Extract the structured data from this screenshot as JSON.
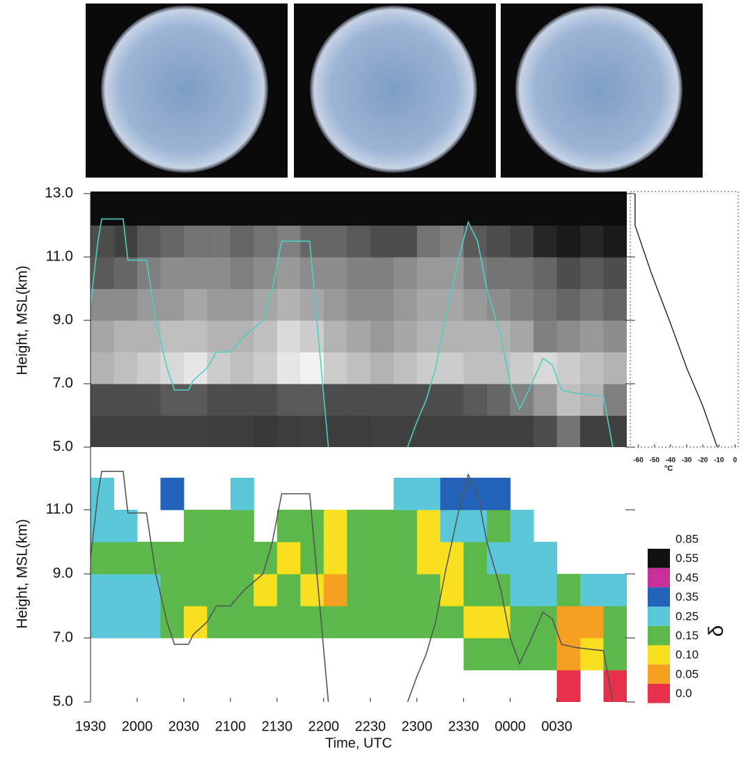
{
  "chart_data": [
    {
      "type": "heatmap",
      "ylabel": "Height, MSL(km)",
      "colormap": "gray",
      "xlim": [
        19.5,
        25.25
      ],
      "ylim": [
        5,
        13
      ],
      "yticks": [
        {
          "value": 5,
          "label": "5.0"
        },
        {
          "value": 7,
          "label": "7.0"
        },
        {
          "value": 9,
          "label": "9.0"
        },
        {
          "value": 11,
          "label": "11.0"
        },
        {
          "value": 13,
          "label": "13.0"
        }
      ],
      "xbins": [
        19.5,
        19.75,
        20,
        20.25,
        20.5,
        20.75,
        21,
        21.25,
        21.5,
        21.75,
        22,
        22.25,
        22.5,
        22.75,
        23,
        23.25,
        23.5,
        23.75,
        24,
        24.25,
        24.5,
        24.75,
        25,
        25.25
      ],
      "ybins": [
        5,
        6,
        7,
        8,
        9,
        10,
        11,
        12,
        13
      ],
      "values": [
        [
          0.25,
          0.25,
          0.25,
          0.25,
          0.25,
          0.24,
          0.24,
          0.22,
          0.24,
          0.25,
          0.24,
          0.24,
          0.25,
          0.25,
          0.25,
          0.25,
          0.25,
          0.25,
          0.25,
          0.3,
          0.45,
          0.25,
          0.25
        ],
        [
          0.3,
          0.3,
          0.3,
          0.35,
          0.35,
          0.3,
          0.3,
          0.3,
          0.35,
          0.35,
          0.3,
          0.3,
          0.3,
          0.3,
          0.3,
          0.3,
          0.35,
          0.4,
          0.5,
          0.6,
          0.75,
          0.7,
          0.5
        ],
        [
          0.7,
          0.75,
          0.8,
          0.85,
          0.9,
          0.8,
          0.75,
          0.8,
          0.9,
          0.95,
          0.8,
          0.75,
          0.7,
          0.75,
          0.8,
          0.8,
          0.75,
          0.75,
          0.8,
          0.85,
          0.8,
          0.75,
          0.7
        ],
        [
          0.65,
          0.7,
          0.7,
          0.75,
          0.75,
          0.7,
          0.7,
          0.75,
          0.85,
          0.8,
          0.7,
          0.65,
          0.6,
          0.65,
          0.7,
          0.7,
          0.7,
          0.7,
          0.65,
          0.5,
          0.55,
          0.6,
          0.55
        ],
        [
          0.55,
          0.55,
          0.6,
          0.6,
          0.65,
          0.6,
          0.6,
          0.65,
          0.7,
          0.65,
          0.6,
          0.55,
          0.55,
          0.6,
          0.65,
          0.65,
          0.6,
          0.55,
          0.5,
          0.45,
          0.4,
          0.45,
          0.4
        ],
        [
          0.35,
          0.4,
          0.5,
          0.55,
          0.55,
          0.55,
          0.5,
          0.55,
          0.6,
          0.55,
          0.55,
          0.5,
          0.5,
          0.55,
          0.6,
          0.6,
          0.5,
          0.45,
          0.45,
          0.4,
          0.3,
          0.35,
          0.3
        ],
        [
          0.3,
          0.25,
          0.35,
          0.4,
          0.45,
          0.45,
          0.4,
          0.45,
          0.5,
          0.4,
          0.4,
          0.35,
          0.3,
          0.3,
          0.45,
          0.5,
          0.35,
          0.3,
          0.25,
          0.15,
          0.1,
          0.15,
          0.1
        ],
        [
          0.05,
          0.05,
          0.05,
          0.05,
          0.05,
          0.05,
          0.05,
          0.05,
          0.05,
          0.05,
          0.05,
          0.05,
          0.05,
          0.05,
          0.05,
          0.05,
          0.05,
          0.05,
          0.05,
          0.05,
          0.05,
          0.05,
          0.05
        ]
      ],
      "series": [
        {
          "color": "#4fcfc4",
          "x": [
            19.5,
            19.58,
            19.62,
            19.85,
            19.9,
            20.1,
            20.2,
            20.32,
            20.4,
            20.55,
            20.6,
            20.75,
            20.85,
            21.0,
            21.15,
            21.35,
            21.45,
            21.55,
            21.85,
            22.05,
            22.5,
            22.9,
            23.0,
            23.1,
            23.2,
            23.3,
            23.45,
            23.55,
            23.65,
            23.75,
            23.9,
            24.0,
            24.1,
            24.2,
            24.35,
            24.45,
            24.55,
            24.7,
            25.0,
            25.1
          ],
          "values": [
            9.5,
            11.5,
            12.2,
            12.2,
            10.9,
            10.9,
            9.0,
            7.5,
            6.8,
            6.8,
            7.1,
            7.5,
            8.0,
            8.0,
            8.5,
            9.0,
            10.0,
            11.5,
            11.5,
            5.0,
            null,
            5.0,
            5.8,
            6.5,
            7.5,
            9.0,
            11.0,
            12.1,
            11.5,
            10.0,
            8.5,
            7.0,
            6.2,
            6.8,
            7.8,
            7.6,
            6.8,
            6.7,
            6.6,
            5.0
          ]
        }
      ]
    },
    {
      "type": "line",
      "xlabel": "°C",
      "xlim": [
        -65,
        2
      ],
      "ylim": [
        5,
        13
      ],
      "xticks": [
        -60,
        -50,
        -40,
        -30,
        -20,
        -10,
        0
      ],
      "x": [
        -62,
        -62,
        -52,
        -40,
        -30,
        -20,
        -11
      ],
      "values": [
        13,
        12,
        10.5,
        8.9,
        7.5,
        6.3,
        5
      ],
      "color": "#000000"
    },
    {
      "type": "heatmap",
      "ylabel": "Height, MSL(km)",
      "xlabel": "Time, UTC",
      "xlim": [
        19.5,
        25.25
      ],
      "ylim": [
        5,
        13
      ],
      "xticks": [
        {
          "value": 19.5,
          "label": "1930"
        },
        {
          "value": 20,
          "label": "2000"
        },
        {
          "value": 20.5,
          "label": "2030"
        },
        {
          "value": 21,
          "label": "2100"
        },
        {
          "value": 21.5,
          "label": "2130"
        },
        {
          "value": 22,
          "label": "2200"
        },
        {
          "value": 22.5,
          "label": "2230"
        },
        {
          "value": 23,
          "label": "2300"
        },
        {
          "value": 23.5,
          "label": "2330"
        },
        {
          "value": 24,
          "label": "0000"
        },
        {
          "value": 24.5,
          "label": "0030"
        }
      ],
      "yticks": [
        {
          "value": 5,
          "label": "5.0"
        },
        {
          "value": 7,
          "label": "7.0"
        },
        {
          "value": 9,
          "label": "9.0"
        },
        {
          "value": 11,
          "label": "11.0"
        }
      ],
      "xbins": [
        19.5,
        19.75,
        20,
        20.25,
        20.5,
        20.75,
        21,
        21.25,
        21.5,
        21.75,
        22,
        22.25,
        22.5,
        22.75,
        23,
        23.25,
        23.5,
        23.75,
        24,
        24.25,
        24.5,
        24.75,
        25,
        25.25
      ],
      "ybins": [
        5,
        6,
        7,
        8,
        9,
        10,
        11,
        12,
        13
      ],
      "values": [
        [
          null,
          null,
          null,
          null,
          null,
          null,
          null,
          null,
          null,
          null,
          null,
          null,
          null,
          null,
          null,
          null,
          null,
          null,
          null,
          null,
          0.02,
          null,
          0.03
        ],
        [
          null,
          null,
          null,
          null,
          null,
          null,
          null,
          null,
          null,
          null,
          null,
          null,
          null,
          null,
          null,
          null,
          0.2,
          0.2,
          0.2,
          0.15,
          0.08,
          0.12,
          0.2
        ],
        [
          0.3,
          0.28,
          0.25,
          0.2,
          0.12,
          0.2,
          0.2,
          0.18,
          0.15,
          0.17,
          0.18,
          0.2,
          0.18,
          0.2,
          0.2,
          0.15,
          0.12,
          0.1,
          0.15,
          0.2,
          0.05,
          0.08,
          0.2
        ],
        [
          0.28,
          0.27,
          0.25,
          0.2,
          0.18,
          0.16,
          0.17,
          0.12,
          0.15,
          0.12,
          0.08,
          0.15,
          0.17,
          0.18,
          0.15,
          0.12,
          0.17,
          0.2,
          0.25,
          0.25,
          0.2,
          0.3,
          0.3
        ],
        [
          0.22,
          0.22,
          0.2,
          0.18,
          0.17,
          0.18,
          0.15,
          0.15,
          0.12,
          0.15,
          0.1,
          0.17,
          0.18,
          0.18,
          0.1,
          0.12,
          0.2,
          0.25,
          0.25,
          0.3,
          null,
          null,
          null
        ],
        [
          0.25,
          0.3,
          null,
          null,
          0.2,
          0.18,
          0.2,
          null,
          0.18,
          0.15,
          0.12,
          0.18,
          0.2,
          0.17,
          0.1,
          0.3,
          0.25,
          0.22,
          0.3,
          null,
          null,
          null,
          null
        ],
        [
          0.3,
          null,
          null,
          0.35,
          null,
          null,
          0.3,
          null,
          null,
          null,
          null,
          null,
          null,
          0.3,
          0.25,
          0.38,
          0.35,
          0.4,
          null,
          null,
          null,
          null,
          null
        ],
        [
          null,
          null,
          null,
          null,
          null,
          null,
          null,
          null,
          null,
          null,
          null,
          null,
          null,
          null,
          null,
          null,
          null,
          null,
          null,
          null,
          null,
          null,
          null
        ]
      ],
      "colorbar": {
        "label": "δ",
        "bounds": [
          {
            "value": 0,
            "label": "0.0"
          },
          0.05,
          {
            "value": 0.1,
            "label": "0.10"
          },
          0.15,
          0.25,
          0.35,
          0.45,
          0.55,
          0.85
        ],
        "colors": [
          "#e8304a",
          "#f5a020",
          "#f8e020",
          "#5cb84a",
          "#5ac8d8",
          "#2262b8",
          "#c8309a",
          "#111111"
        ]
      },
      "series": [
        {
          "color": "#555555",
          "x": [
            19.5,
            19.58,
            19.62,
            19.85,
            19.9,
            20.1,
            20.2,
            20.32,
            20.4,
            20.55,
            20.6,
            20.75,
            20.85,
            21.0,
            21.15,
            21.35,
            21.45,
            21.55,
            21.85,
            22.05,
            22.5,
            22.9,
            23.0,
            23.1,
            23.2,
            23.3,
            23.45,
            23.55,
            23.65,
            23.75,
            23.9,
            24.0,
            24.1,
            24.2,
            24.35,
            24.45,
            24.55,
            24.7,
            25.0,
            25.1
          ],
          "values": [
            9.5,
            11.5,
            12.2,
            12.2,
            10.9,
            10.9,
            9.0,
            7.5,
            6.8,
            6.8,
            7.1,
            7.5,
            8.0,
            8.0,
            8.5,
            9.0,
            10.0,
            11.5,
            11.5,
            5.0,
            null,
            5.0,
            5.8,
            6.5,
            7.5,
            9.0,
            11.0,
            12.1,
            11.5,
            10.0,
            8.5,
            7.0,
            6.2,
            6.8,
            7.8,
            7.6,
            6.8,
            6.7,
            6.6,
            5.0
          ]
        }
      ]
    }
  ]
}
